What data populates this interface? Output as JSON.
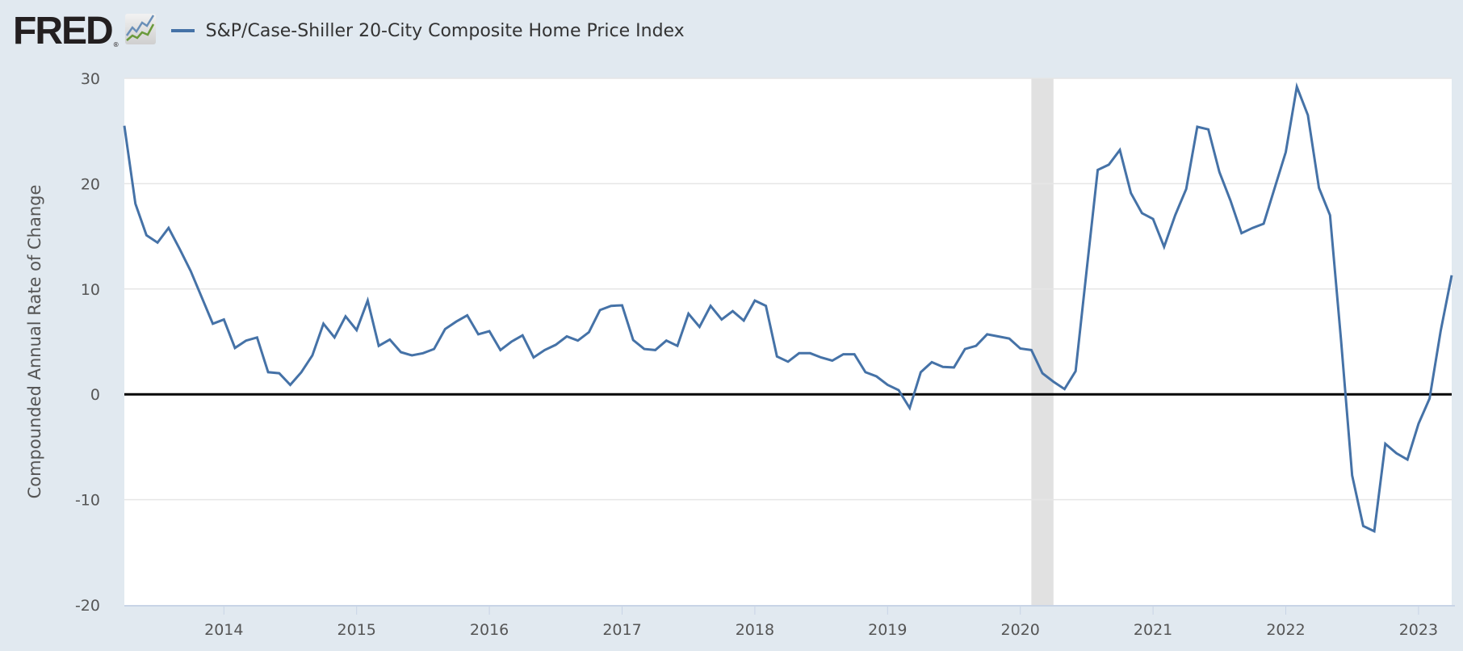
{
  "logo": {
    "text": "FRED",
    "reg": "®"
  },
  "chart_data": {
    "type": "line",
    "title": "S&P/Case-Shiller 20-City Composite Home Price Index",
    "xlabel": "",
    "ylabel": "Compounded Annual Rate of Change",
    "ylim": [
      -20,
      30
    ],
    "yticks": [
      -20,
      -10,
      0,
      10,
      20,
      30
    ],
    "xtick_labels": [
      "2014",
      "2015",
      "2016",
      "2017",
      "2018",
      "2019",
      "2020",
      "2021",
      "2022",
      "2023"
    ],
    "x_start": "2013-04",
    "x_end": "2023-04",
    "frequency": "monthly",
    "grid": true,
    "legend": "top-left",
    "recession": {
      "start": "2020-02",
      "end": "2020-04"
    },
    "colors": {
      "line": "#4572a7",
      "grid": "#e6e6e6",
      "recession": "#e1e1e1",
      "zero": "#000000"
    },
    "series": [
      {
        "name": "S&P/Case-Shiller 20-City Composite Home Price Index",
        "values": [
          25.5,
          18.1,
          15.1,
          14.4,
          15.8,
          13.8,
          11.7,
          9.2,
          6.7,
          7.1,
          4.4,
          5.1,
          5.4,
          2.1,
          2.0,
          0.9,
          2.1,
          3.7,
          6.7,
          5.4,
          7.4,
          6.1,
          8.9,
          4.6,
          5.2,
          4.0,
          3.7,
          3.9,
          4.3,
          6.2,
          6.9,
          7.5,
          5.7,
          6.0,
          4.2,
          5.0,
          5.6,
          3.5,
          4.2,
          4.7,
          5.5,
          5.1,
          5.9,
          8.0,
          8.4,
          8.45,
          5.15,
          4.3,
          4.2,
          5.1,
          4.6,
          7.65,
          6.4,
          8.4,
          7.1,
          7.9,
          7.0,
          8.9,
          8.4,
          3.6,
          3.1,
          3.9,
          3.9,
          3.5,
          3.2,
          3.8,
          3.8,
          2.1,
          1.7,
          0.9,
          0.4,
          -1.3,
          2.1,
          3.05,
          2.6,
          2.55,
          4.3,
          4.6,
          5.7,
          5.5,
          5.3,
          4.35,
          4.2,
          2.0,
          1.2,
          0.5,
          2.2,
          11.8,
          21.3,
          21.8,
          23.2,
          19.1,
          17.2,
          16.65,
          14.0,
          17.0,
          19.5,
          25.4,
          25.15,
          21.1,
          18.4,
          15.3,
          15.8,
          16.2,
          19.6,
          23.0,
          29.2,
          26.5,
          19.6,
          17.0,
          5.1,
          -7.7,
          -12.5,
          -13.0,
          -4.7,
          -5.6,
          -6.2,
          -2.8,
          -0.4,
          6.0,
          11.3
        ]
      }
    ]
  }
}
